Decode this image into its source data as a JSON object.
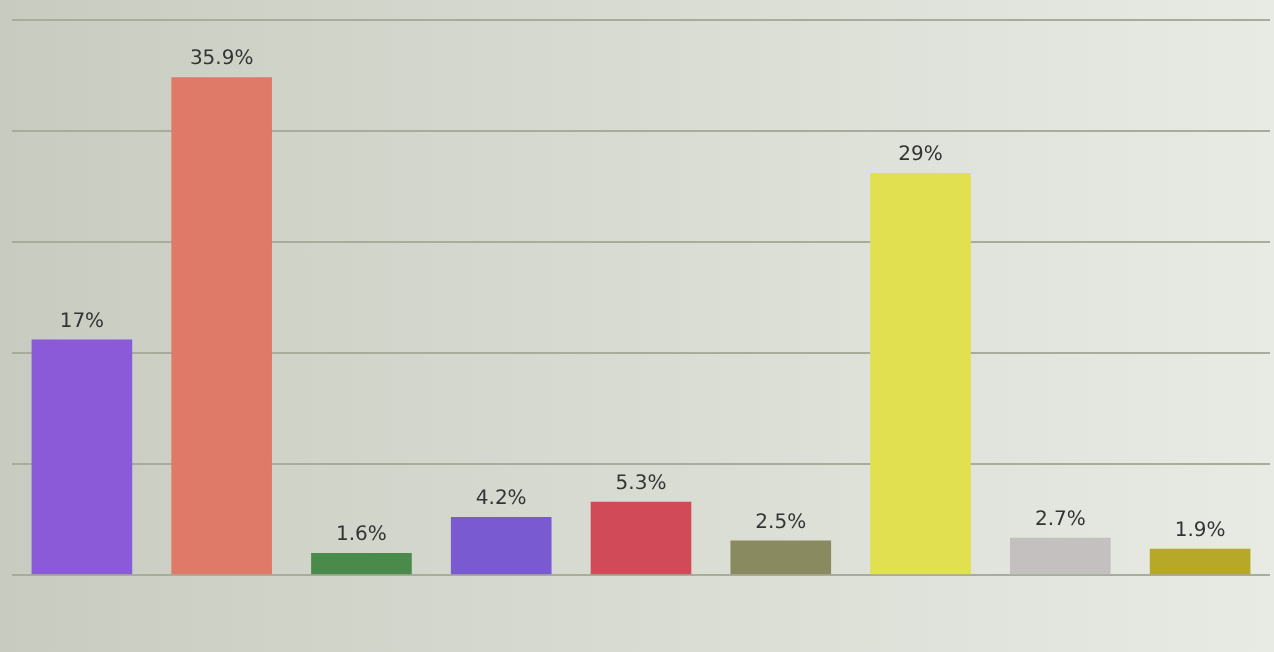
{
  "chart_data": {
    "type": "bar",
    "categories": [
      null,
      null,
      null,
      null,
      null,
      null,
      null,
      null,
      null
    ],
    "values": [
      17,
      35.9,
      1.6,
      4.2,
      5.3,
      2.5,
      29,
      2.7,
      1.9
    ],
    "value_labels": [
      "17%",
      "35.9%",
      "1.6%",
      "4.2%",
      "5.3%",
      "2.5%",
      "29%",
      "2.7%",
      "1.9%"
    ],
    "colors": [
      "#8a5ad8",
      "#e07a68",
      "#4a8a4a",
      "#7a5ad0",
      "#d04a58",
      "#8a8a60",
      "#e0e050",
      "#c4c0c0",
      "#b8a828"
    ],
    "ylim": [
      0,
      40
    ],
    "yticks": [
      {
        "value": 0,
        "label": null
      },
      {
        "value": 8,
        "label": null
      },
      {
        "value": 16,
        "label": null
      },
      {
        "value": 24,
        "label": null
      },
      {
        "value": 32,
        "label": null
      },
      {
        "value": 40,
        "label": null
      }
    ],
    "grid": "y",
    "legend": false
  }
}
